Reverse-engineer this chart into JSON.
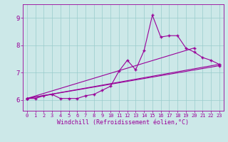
{
  "xlabel": "Windchill (Refroidissement éolien,°C)",
  "ylabel": "",
  "bg_color": "#cce8e8",
  "grid_color": "#99cccc",
  "line_color": "#990099",
  "x_ticks": [
    0,
    1,
    2,
    3,
    4,
    5,
    6,
    7,
    8,
    9,
    10,
    11,
    12,
    13,
    14,
    15,
    16,
    17,
    18,
    19,
    20,
    21,
    22,
    23
  ],
  "y_ticks": [
    6,
    7,
    8,
    9
  ],
  "ylim": [
    5.6,
    9.5
  ],
  "xlim": [
    -0.5,
    23.5
  ],
  "series1_x": [
    0,
    1,
    2,
    3,
    4,
    5,
    6,
    7,
    8,
    9,
    10,
    11,
    12,
    13,
    14,
    15,
    16,
    17,
    18,
    19,
    20,
    21,
    22,
    23
  ],
  "series1_y": [
    6.05,
    6.05,
    6.15,
    6.2,
    6.05,
    6.05,
    6.05,
    6.15,
    6.2,
    6.35,
    6.5,
    7.05,
    7.45,
    7.1,
    7.8,
    9.1,
    8.3,
    8.35,
    8.35,
    7.9,
    7.75,
    7.55,
    7.45,
    7.3
  ],
  "series2_x": [
    0,
    23
  ],
  "series2_y": [
    6.05,
    7.3
  ],
  "series3_x": [
    0,
    20
  ],
  "series3_y": [
    6.05,
    7.9
  ],
  "series4_x": [
    0,
    23
  ],
  "series4_y": [
    6.05,
    7.25
  ],
  "marker": "+",
  "markersize": 3,
  "linewidth": 0.8,
  "tick_fontsize": 5.0,
  "xlabel_fontsize": 6.0
}
